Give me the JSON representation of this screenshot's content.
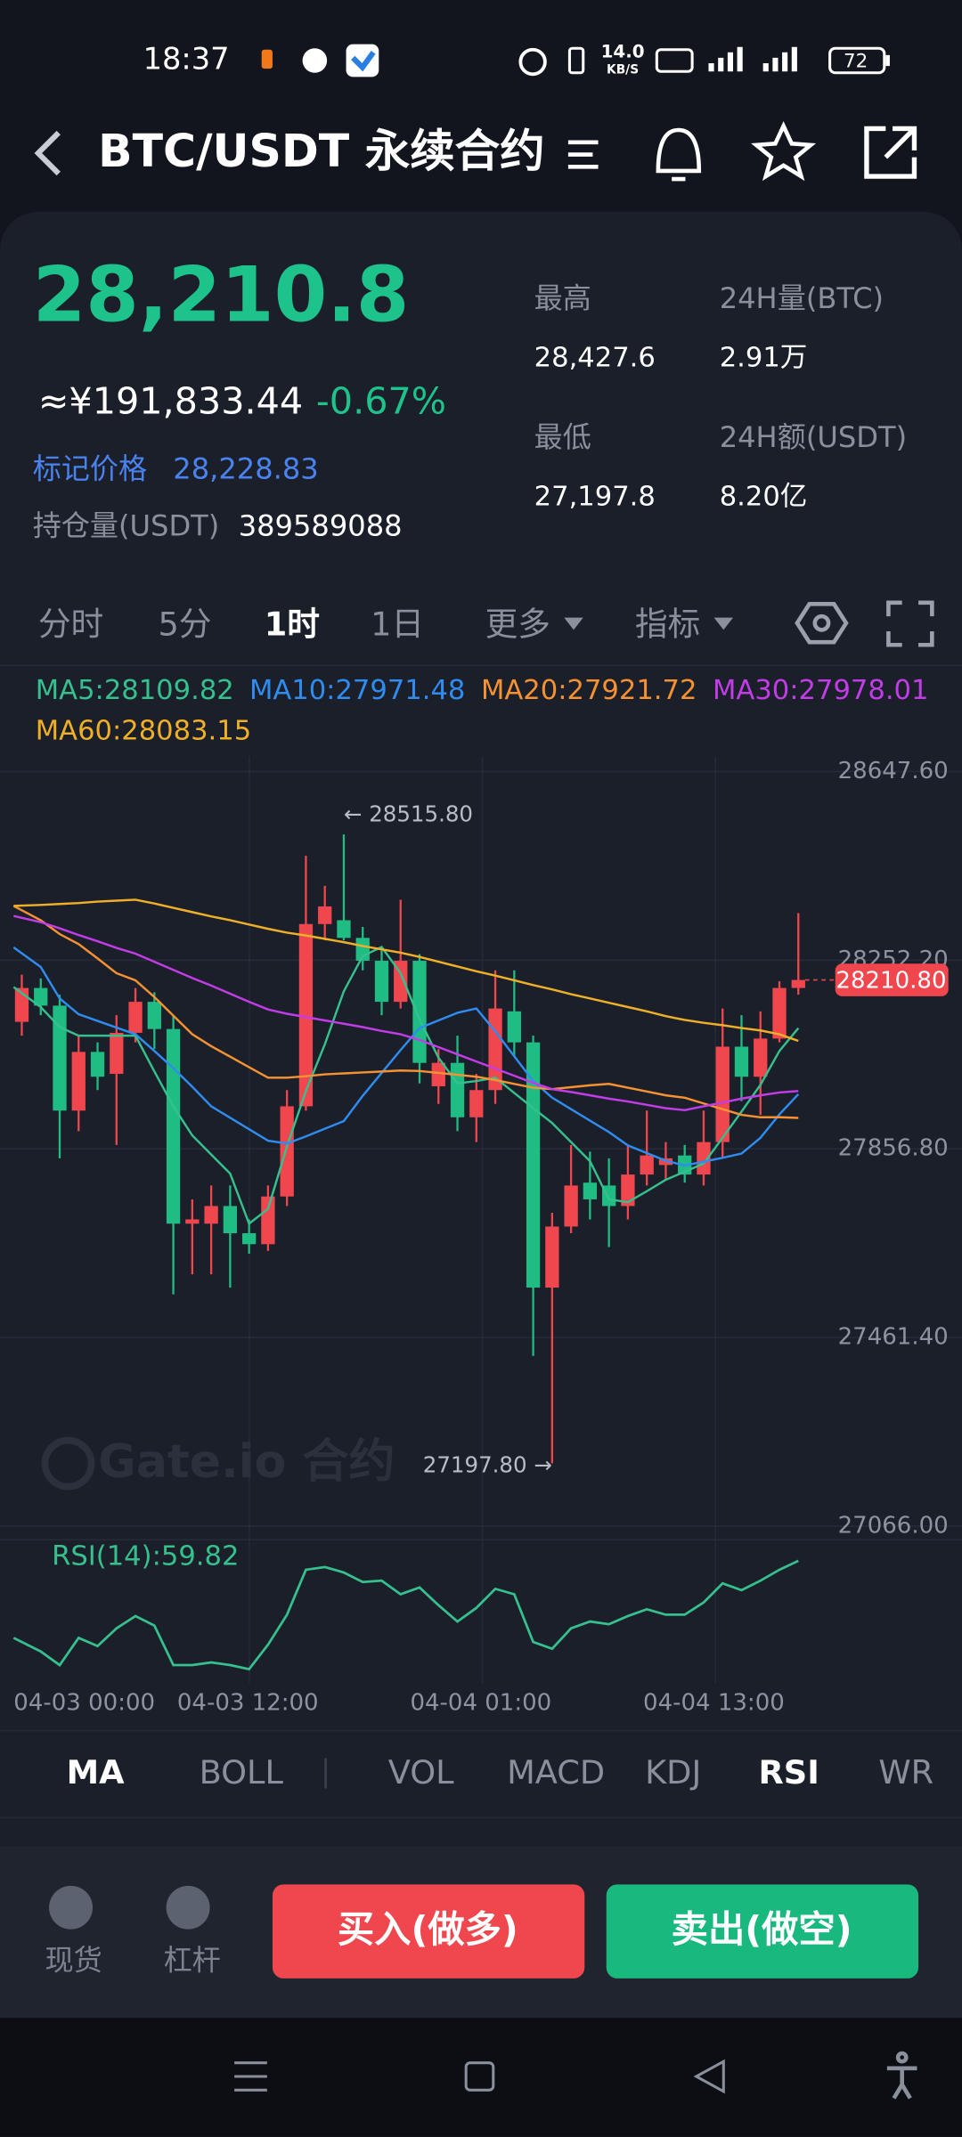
{
  "status_bar": {
    "time": "18:37",
    "speed": "14.0",
    "speed_unit": "KB/S",
    "battery": "72"
  },
  "header": {
    "title": "BTC/USDT 永续合约"
  },
  "ticker": {
    "last_price": "28,210.8",
    "cny_price": "≈¥191,833.44",
    "change": "-0.67%",
    "mark_price_label": "标记价格",
    "mark_price": "28,228.83",
    "open_interest_label": "持仓量(USDT)",
    "open_interest": "389589088",
    "stats": [
      {
        "label": "最高",
        "value": "28,427.6"
      },
      {
        "label": "24H量(BTC)",
        "value": "2.91万"
      },
      {
        "label": "最低",
        "value": "27,197.8"
      },
      {
        "label": "24H额(USDT)",
        "value": "8.20亿"
      }
    ]
  },
  "interval_tabs": {
    "items": [
      "分时",
      "5分",
      "1时",
      "1日",
      "更多",
      "指标"
    ],
    "active": 2
  },
  "chart": {
    "type": "candlestick",
    "up_color": "#f0474f",
    "down_color": "#1fbc84",
    "grid": true,
    "ylim": [
      27066,
      28647.6
    ],
    "yticks": [
      {
        "value": 28647.6,
        "label": "28647.60"
      },
      {
        "value": 28252.2,
        "label": "28252.20"
      },
      {
        "value": 27856.8,
        "label": "27856.80"
      },
      {
        "value": 27461.4,
        "label": "27461.40"
      },
      {
        "value": 27066,
        "label": "27066.00"
      }
    ],
    "x_labels": [
      "04-03 00:00",
      "04-03 12:00",
      "04-04 01:00",
      "04-04 13:00"
    ],
    "open": [
      28123,
      28194,
      28157,
      27937,
      28060,
      28014,
      28100,
      28165,
      28108,
      27700,
      27700,
      27737,
      27680,
      27657,
      27757,
      27946,
      28328,
      28336,
      28299,
      28251,
      28165,
      28251,
      27988,
      28037,
      27923,
      27980,
      28145,
      28080,
      27566,
      27694,
      27786,
      27780,
      27737,
      27803,
      27823,
      27843,
      27803,
      27871,
      28071,
      28008,
      28088,
      28194
    ],
    "high": [
      28222,
      28214,
      28180,
      28094,
      28080,
      28137,
      28194,
      28185,
      28137,
      27751,
      27780,
      27780,
      27709,
      27780,
      27980,
      28471,
      28408,
      28515.8,
      28322,
      28279,
      28379,
      28265,
      28066,
      28094,
      28014,
      28231,
      28231,
      28094,
      27723,
      27865,
      27851,
      27837,
      27865,
      27937,
      27871,
      27865,
      27937,
      28151,
      28137,
      28145,
      28208,
      28351
    ],
    "low": [
      28094,
      28137,
      27837,
      27894,
      27980,
      27865,
      28080,
      28066,
      27552,
      27594,
      27594,
      27566,
      27637,
      27643,
      27737,
      27937,
      28294,
      28294,
      28231,
      28137,
      28151,
      27994,
      27951,
      27894,
      27871,
      27951,
      28051,
      27423,
      27197.8,
      27680,
      27709,
      27651,
      27709,
      27780,
      27794,
      27786,
      27780,
      27837,
      27957,
      27928,
      28080,
      28180
    ],
    "close": [
      28194,
      28157,
      27937,
      28060,
      28008,
      28100,
      28165,
      28108,
      27700,
      27709,
      27737,
      27680,
      27657,
      27757,
      27946,
      28328,
      28365,
      28299,
      28251,
      28165,
      28251,
      28037,
      28037,
      27923,
      27980,
      28151,
      28080,
      27566,
      27694,
      27780,
      27751,
      27737,
      27803,
      27843,
      27837,
      27803,
      27871,
      28071,
      28008,
      28088,
      28194,
      28210.8
    ],
    "series": [
      {
        "label": "MA5:28109.82",
        "color": "#35c08e",
        "values": [
          28196,
          28154,
          28112,
          28094,
          28094,
          28094,
          28094,
          28019,
          27946,
          27885,
          27845,
          27805,
          27700,
          27731,
          27862,
          27978,
          28076,
          28187,
          28261,
          28280,
          28225,
          28128,
          28048,
          27994,
          27999,
          28006,
          27974,
          27942,
          27911,
          27871,
          27831,
          27751,
          27745,
          27768,
          27792,
          27809,
          27826,
          27880,
          27935,
          27991,
          28062,
          28109.82
        ]
      },
      {
        "label": "MA10:27971.48",
        "color": "#2f8cf0",
        "values": [
          28279,
          28238,
          28172,
          28139,
          28125,
          28111,
          28097,
          28062,
          28026,
          27987,
          27946,
          27922,
          27898,
          27874,
          27868,
          27883,
          27899,
          27915,
          27968,
          28016,
          28064,
          28110,
          28126,
          28142,
          28151,
          28103,
          28051,
          27999,
          27964,
          27940,
          27916,
          27892,
          27864,
          27848,
          27832,
          27822,
          27830,
          27838,
          27847,
          27880,
          27929,
          27971.48
        ]
      },
      {
        "label": "MA20:27921.72",
        "color": "#f79232",
        "values": [
          28366,
          28336,
          28307,
          28286,
          28256,
          28225,
          28210,
          28175,
          28136,
          28097,
          28072,
          28050,
          28028,
          28006,
          28006,
          28009,
          28013,
          28015,
          28017,
          28019,
          28021,
          28020,
          28016,
          28012,
          28008,
          28001,
          27993,
          27985,
          27982,
          27986,
          27990,
          27993,
          27985,
          27977,
          27969,
          27964,
          27952,
          27940,
          27928,
          27923,
          27923,
          27921.72
        ]
      },
      {
        "label": "MA30:27978.01",
        "color": "#c23ce8",
        "values": [
          28345,
          28332,
          28319,
          28305,
          28292,
          28278,
          28266,
          28249,
          28232,
          28215,
          28199,
          28182,
          28165,
          28149,
          28140,
          28133,
          28126,
          28119,
          28112,
          28104,
          28097,
          28085,
          28070,
          28055,
          28040,
          28025,
          28010,
          27995,
          27982,
          27976,
          27969,
          27962,
          27956,
          27949,
          27942,
          27938,
          27946,
          27954,
          27962,
          27969,
          27975,
          27978.01
        ]
      },
      {
        "label": "MA60:28083.15",
        "color": "#efb027",
        "values": [
          28366,
          28368,
          28370,
          28372,
          28375,
          28377,
          28379,
          28371,
          28362,
          28353,
          28344,
          28336,
          28327,
          28318,
          28310,
          28304,
          28297,
          28290,
          28282,
          28275,
          28268,
          28259,
          28249,
          28239,
          28229,
          28220,
          28210,
          28200,
          28191,
          28181,
          28172,
          28163,
          28154,
          28145,
          28135,
          28127,
          28121,
          28116,
          28110,
          28105,
          28097,
          28083.15
        ]
      }
    ],
    "price_tag": {
      "value": 28210.8,
      "label": "28210.80"
    },
    "high_note": "← 28515.80",
    "low_note": "27197.80 →",
    "watermark": "Gate.io 合约",
    "rsi": {
      "label": "RSI(14):59.82",
      "color": "#35c08e",
      "ylim": [
        22,
        66
      ],
      "values": [
        37.2,
        33.2,
        29.2,
        37.2,
        34.8,
        40,
        43.6,
        40.8,
        29.2,
        29.2,
        30,
        29.2,
        28,
        35.2,
        44,
        57.2,
        58,
        56.4,
        53.6,
        54,
        50,
        52,
        46.8,
        42,
        46,
        51.6,
        50,
        36,
        34,
        40,
        42,
        41.2,
        43.6,
        45.6,
        44,
        44,
        47.6,
        53.2,
        51.2,
        54,
        57.2,
        59.82
      ]
    }
  },
  "indicator_tabs": {
    "items": [
      "MA",
      "BOLL",
      "VOL",
      "MACD",
      "KDJ",
      "RSI",
      "WR"
    ],
    "active": [
      0,
      5
    ]
  },
  "bottom": {
    "spot": "现货",
    "leverage": "杠杆",
    "buy": "买入(做多)",
    "sell": "卖出(做空)"
  }
}
